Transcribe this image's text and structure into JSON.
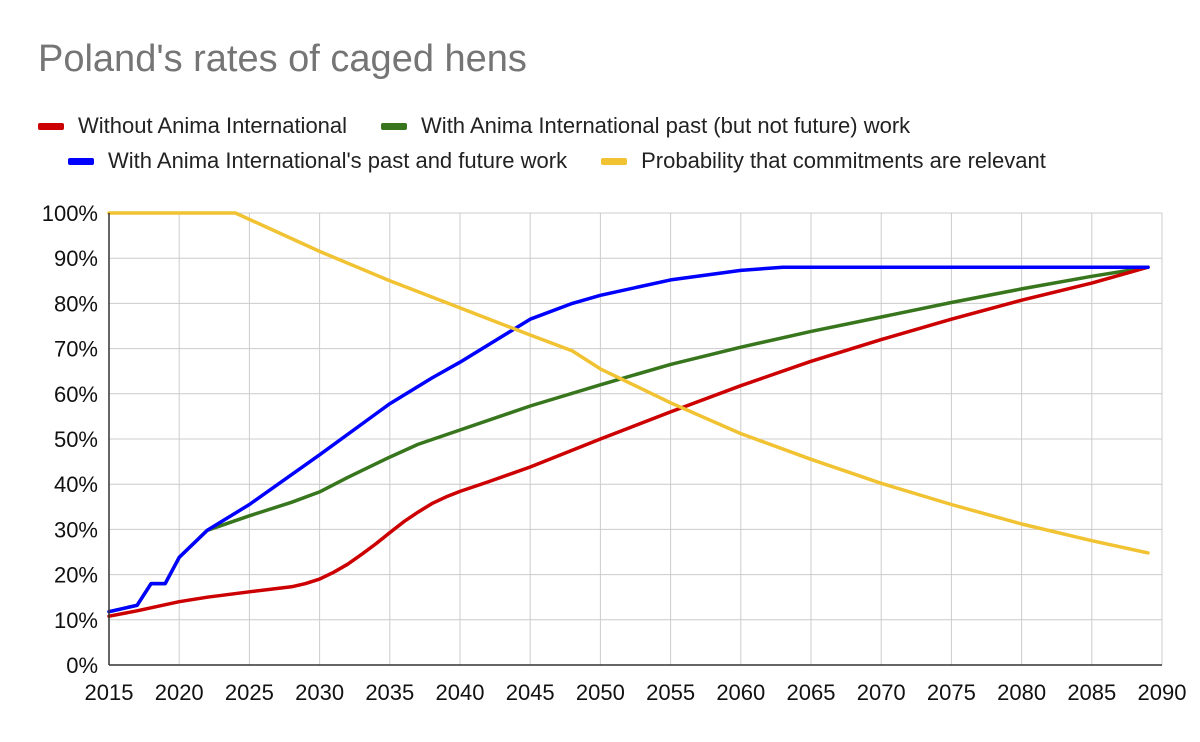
{
  "chart_data": {
    "type": "line",
    "title": "Poland's rates of caged hens",
    "xlabel": "",
    "ylabel": "",
    "xlim": [
      2015,
      2090
    ],
    "ylim": [
      0,
      100
    ],
    "x_ticks": [
      "2015",
      "2020",
      "2025",
      "2030",
      "2035",
      "2040",
      "2045",
      "2050",
      "2055",
      "2060",
      "2065",
      "2070",
      "2075",
      "2080",
      "2085",
      "2090"
    ],
    "y_ticks": [
      "0%",
      "10%",
      "20%",
      "30%",
      "40%",
      "50%",
      "60%",
      "70%",
      "80%",
      "90%",
      "100%"
    ],
    "grid": true,
    "legend_position": "top",
    "series": [
      {
        "name": "Without Anima International",
        "color": "#cc0000",
        "points": [
          [
            2015,
            10.8
          ],
          [
            2017,
            12
          ],
          [
            2020,
            14
          ],
          [
            2022,
            15
          ],
          [
            2025,
            16.2
          ],
          [
            2028,
            17.3
          ],
          [
            2029,
            18
          ],
          [
            2030,
            19
          ],
          [
            2031,
            20.5
          ],
          [
            2032,
            22.3
          ],
          [
            2033,
            24.5
          ],
          [
            2034,
            26.8
          ],
          [
            2035,
            29.3
          ],
          [
            2036,
            31.7
          ],
          [
            2037,
            33.8
          ],
          [
            2038,
            35.7
          ],
          [
            2039,
            37.2
          ],
          [
            2040,
            38.4
          ],
          [
            2042,
            40.5
          ],
          [
            2045,
            43.8
          ],
          [
            2050,
            50
          ],
          [
            2055,
            56
          ],
          [
            2060,
            61.8
          ],
          [
            2065,
            67.2
          ],
          [
            2070,
            72
          ],
          [
            2075,
            76.5
          ],
          [
            2080,
            80.7
          ],
          [
            2085,
            84.5
          ],
          [
            2089,
            88
          ]
        ]
      },
      {
        "name": "With Anima International past (but not future) work",
        "color": "#38761d",
        "points": [
          [
            2015,
            11.8
          ],
          [
            2017,
            13.2
          ],
          [
            2018,
            18
          ],
          [
            2019,
            18
          ],
          [
            2020,
            23.8
          ],
          [
            2022,
            29.8
          ],
          [
            2025,
            33
          ],
          [
            2028,
            36
          ],
          [
            2030,
            38.3
          ],
          [
            2032,
            41.5
          ],
          [
            2035,
            46
          ],
          [
            2037,
            48.8
          ],
          [
            2040,
            52
          ],
          [
            2045,
            57.3
          ],
          [
            2050,
            62
          ],
          [
            2055,
            66.5
          ],
          [
            2060,
            70.3
          ],
          [
            2065,
            73.8
          ],
          [
            2070,
            77
          ],
          [
            2075,
            80.2
          ],
          [
            2080,
            83.2
          ],
          [
            2085,
            86
          ],
          [
            2089,
            88
          ]
        ]
      },
      {
        "name": "With Anima International's past and future work",
        "color": "#0000ff",
        "points": [
          [
            2015,
            11.8
          ],
          [
            2017,
            13.2
          ],
          [
            2018,
            18
          ],
          [
            2019,
            18
          ],
          [
            2020,
            23.8
          ],
          [
            2022,
            29.8
          ],
          [
            2025,
            35.5
          ],
          [
            2030,
            46.5
          ],
          [
            2035,
            57.8
          ],
          [
            2038,
            63.5
          ],
          [
            2040,
            67
          ],
          [
            2045,
            76.5
          ],
          [
            2048,
            80
          ],
          [
            2050,
            81.8
          ],
          [
            2055,
            85.2
          ],
          [
            2060,
            87.3
          ],
          [
            2063,
            88
          ],
          [
            2089,
            88
          ]
        ]
      },
      {
        "name": "Probability that commitments are relevant",
        "color": "#f1c232",
        "points": [
          [
            2015,
            100
          ],
          [
            2024,
            100
          ],
          [
            2030,
            91.5
          ],
          [
            2035,
            85
          ],
          [
            2040,
            79
          ],
          [
            2045,
            73
          ],
          [
            2048,
            69.5
          ],
          [
            2050,
            65.5
          ],
          [
            2055,
            58
          ],
          [
            2060,
            51.2
          ],
          [
            2065,
            45.5
          ],
          [
            2070,
            40.2
          ],
          [
            2075,
            35.5
          ],
          [
            2080,
            31.2
          ],
          [
            2085,
            27.5
          ],
          [
            2089,
            24.8
          ]
        ]
      }
    ]
  }
}
